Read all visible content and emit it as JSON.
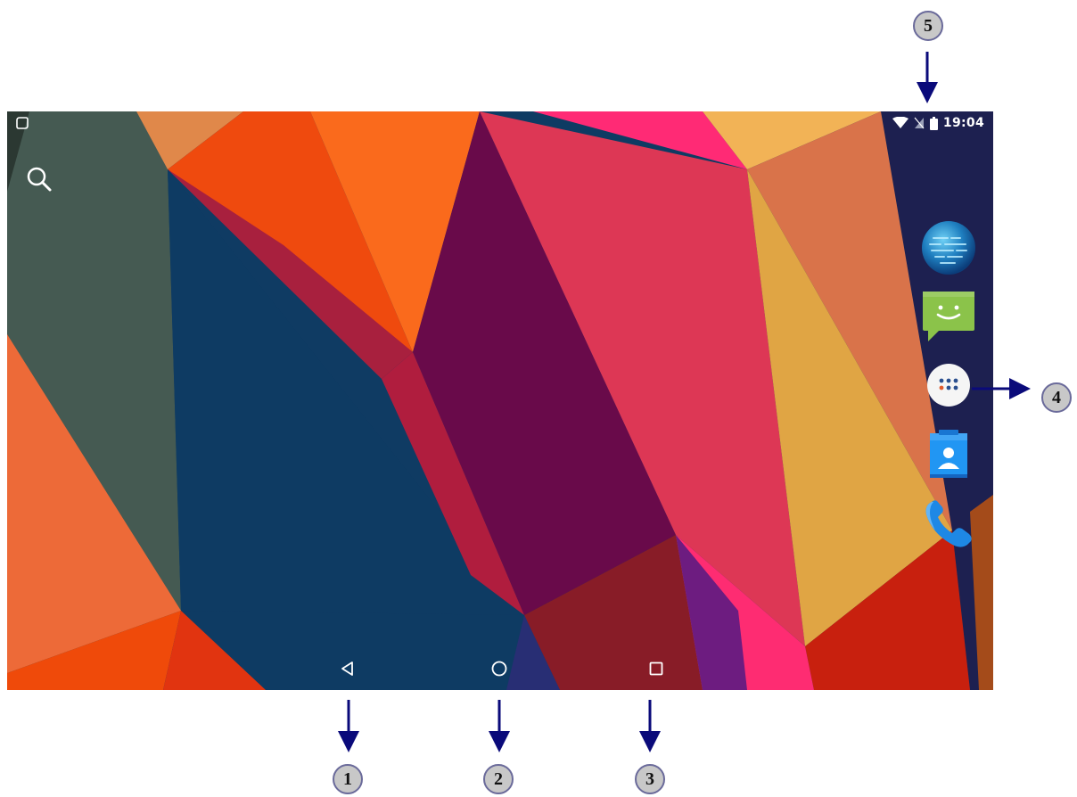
{
  "status_bar": {
    "time": "19:04",
    "left_icon": "notification-icon",
    "icons": [
      "wifi-icon",
      "no-sim-icon",
      "battery-icon"
    ]
  },
  "search": {
    "icon": "search-icon"
  },
  "dock": {
    "items": [
      {
        "icon": "browser-globe-icon"
      },
      {
        "icon": "messaging-icon"
      },
      {
        "icon": "app-drawer-icon"
      },
      {
        "icon": "contacts-icon"
      },
      {
        "icon": "phone-icon"
      }
    ]
  },
  "navbar": {
    "buttons": [
      {
        "icon": "back-icon"
      },
      {
        "icon": "home-icon"
      },
      {
        "icon": "recents-icon"
      }
    ]
  },
  "callouts": [
    "1",
    "2",
    "3",
    "4",
    "5"
  ],
  "colors": {
    "arrow": "#0a0a7a",
    "callout_fill": "#c8c8c8"
  }
}
